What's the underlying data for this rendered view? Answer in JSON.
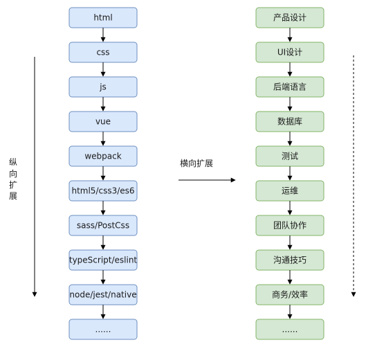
{
  "left_column": {
    "nodes": [
      "html",
      "css",
      "js",
      "vue",
      "webpack",
      "html5/css3/es6",
      "sass/PostCss",
      "typeScript/eslint",
      "node/jest/native",
      "......"
    ]
  },
  "right_column": {
    "nodes": [
      "产品设计",
      "UI设计",
      "后端语言",
      "数据库",
      "测试",
      "运维",
      "团队协作",
      "沟通技巧",
      "商务/效率",
      "......"
    ]
  },
  "vertical_label": [
    "纵",
    "向",
    "扩",
    "展"
  ],
  "horizontal_label": "横向扩展",
  "colors": {
    "left_fill": "#dae8fc",
    "left_stroke": "#6c8ebf",
    "right_fill": "#d5e8d4",
    "right_stroke": "#82b366"
  }
}
